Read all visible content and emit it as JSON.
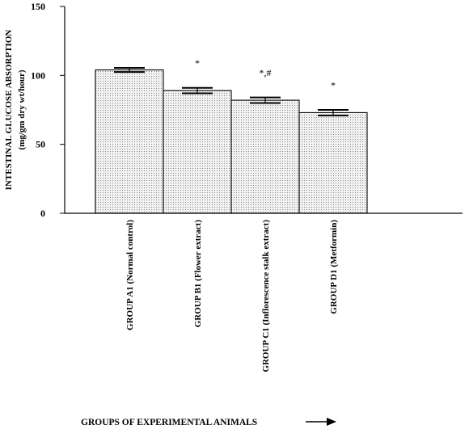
{
  "chart_data": {
    "type": "bar",
    "categories": [
      "GROUP A1 (Normal control)",
      "GROUP B1 (Flower extract)",
      "GROUP C1 (Inflorescence stalk extract)",
      "GROUP D1 (Metformin)"
    ],
    "values": [
      104,
      89,
      82,
      73
    ],
    "errors": [
      1.5,
      2,
      2,
      2
    ],
    "annotations": [
      "",
      "*",
      "*,#",
      "*"
    ],
    "ylabel_line1": "INTESTINAL GLUCOSE ABSORPTION",
    "ylabel_line2": "(mg/gm dry wt/hour)",
    "xlabel": "GROUPS OF EXPERIMENTAL ANIMALS",
    "ylim": [
      0,
      150
    ],
    "yticks": [
      0,
      50,
      100,
      150
    ],
    "grid": false,
    "bar_fill": "#e8e8e8"
  }
}
